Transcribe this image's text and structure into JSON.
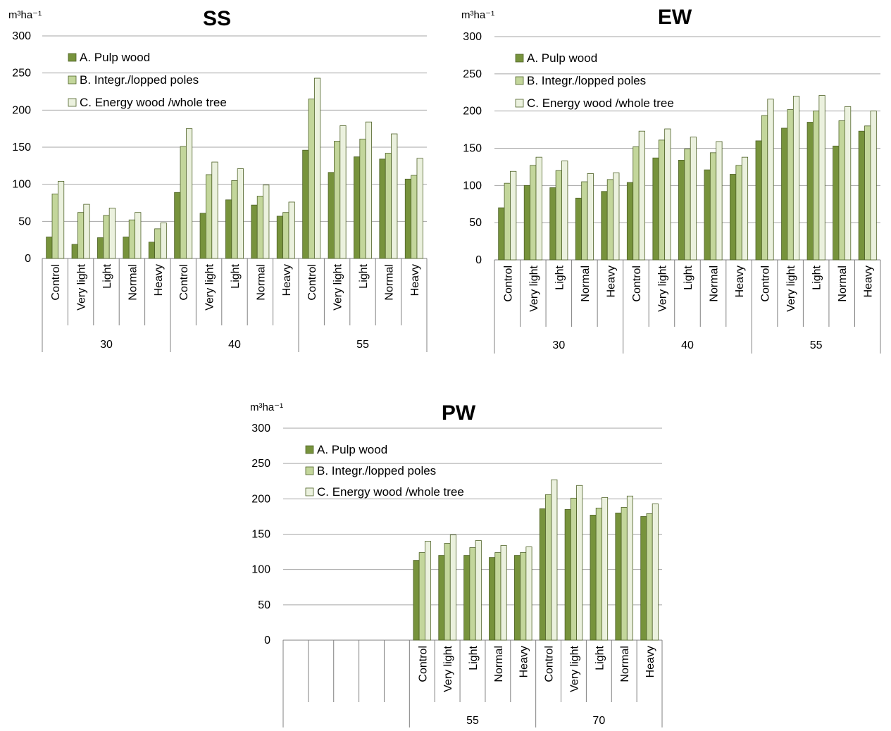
{
  "colors": {
    "A": "#77933c",
    "B": "#c3d69b",
    "C": "#ebf1de"
  },
  "chart_data": [
    {
      "id": "SS",
      "type": "bar",
      "title": "SS",
      "unit_label": "m³ha⁻¹",
      "ylim": [
        0,
        300
      ],
      "yticks": [
        0,
        50,
        100,
        150,
        200,
        250,
        300
      ],
      "grid": true,
      "legend_position": "top-left",
      "groups": [
        {
          "label": "30",
          "categories": [
            "Control",
            "Very light",
            "Light",
            "Normal",
            "Heavy"
          ]
        },
        {
          "label": "40",
          "categories": [
            "Control",
            "Very light",
            "Light",
            "Normal",
            "Heavy"
          ]
        },
        {
          "label": "55",
          "categories": [
            "Control",
            "Very light",
            "Light",
            "Normal",
            "Heavy"
          ]
        }
      ],
      "series": [
        {
          "name": "A. Pulp wood",
          "color_key": "A",
          "values": [
            29,
            19,
            28,
            29,
            22,
            89,
            61,
            79,
            72,
            57,
            146,
            116,
            137,
            134,
            107
          ]
        },
        {
          "name": "B. Integr./lopped poles",
          "color_key": "B",
          "values": [
            87,
            62,
            58,
            52,
            40,
            151,
            113,
            105,
            84,
            62,
            215,
            158,
            161,
            142,
            112
          ]
        },
        {
          "name": "C. Energy wood /whole tree",
          "color_key": "C",
          "values": [
            104,
            73,
            68,
            62,
            48,
            175,
            130,
            121,
            99,
            76,
            243,
            179,
            184,
            168,
            135
          ]
        }
      ]
    },
    {
      "id": "EW",
      "type": "bar",
      "title": "EW",
      "unit_label": "m³ha⁻¹",
      "ylim": [
        0,
        300
      ],
      "yticks": [
        0,
        50,
        100,
        150,
        200,
        250,
        300
      ],
      "grid": true,
      "legend_position": "top-left",
      "groups": [
        {
          "label": "30",
          "categories": [
            "Control",
            "Very light",
            "Light",
            "Normal",
            "Heavy"
          ]
        },
        {
          "label": "40",
          "categories": [
            "Control",
            "Very light",
            "Light",
            "Normal",
            "Heavy"
          ]
        },
        {
          "label": "55",
          "categories": [
            "Control",
            "Very light",
            "Light",
            "Normal",
            "Heavy"
          ]
        }
      ],
      "series": [
        {
          "name": "A. Pulp wood",
          "color_key": "A",
          "values": [
            70,
            100,
            97,
            83,
            92,
            104,
            137,
            134,
            121,
            115,
            160,
            177,
            185,
            153,
            173
          ]
        },
        {
          "name": "B. Integr./lopped poles",
          "color_key": "B",
          "values": [
            103,
            127,
            120,
            105,
            108,
            152,
            161,
            149,
            144,
            127,
            194,
            202,
            200,
            187,
            180
          ]
        },
        {
          "name": "C. Energy wood /whole tree",
          "color_key": "C",
          "values": [
            119,
            138,
            133,
            116,
            117,
            173,
            176,
            165,
            159,
            138,
            216,
            220,
            221,
            206,
            200
          ]
        }
      ]
    },
    {
      "id": "PW",
      "type": "bar",
      "title": "PW",
      "unit_label": "m³ha⁻¹",
      "ylim": [
        0,
        300
      ],
      "yticks": [
        0,
        50,
        100,
        150,
        200,
        250,
        300
      ],
      "grid": true,
      "legend_position": "top-left",
      "groups": [
        {
          "label": "",
          "categories": [
            "",
            "",
            "",
            "",
            ""
          ]
        },
        {
          "label": "55",
          "categories": [
            "Control",
            "Very light",
            "Light",
            "Normal",
            "Heavy"
          ]
        },
        {
          "label": "70",
          "categories": [
            "Control",
            "Very light",
            "Light",
            "Normal",
            "Heavy"
          ]
        }
      ],
      "series": [
        {
          "name": "A. Pulp wood",
          "color_key": "A",
          "values": [
            null,
            null,
            null,
            null,
            null,
            113,
            120,
            120,
            117,
            120,
            186,
            185,
            177,
            180,
            175
          ]
        },
        {
          "name": "B. Integr./lopped poles",
          "color_key": "B",
          "values": [
            null,
            null,
            null,
            null,
            null,
            124,
            137,
            131,
            124,
            124,
            206,
            201,
            187,
            188,
            179
          ]
        },
        {
          "name": "C. Energy wood /whole tree",
          "color_key": "C",
          "values": [
            null,
            null,
            null,
            null,
            null,
            140,
            149,
            141,
            134,
            132,
            227,
            219,
            202,
            204,
            193
          ]
        }
      ]
    }
  ]
}
